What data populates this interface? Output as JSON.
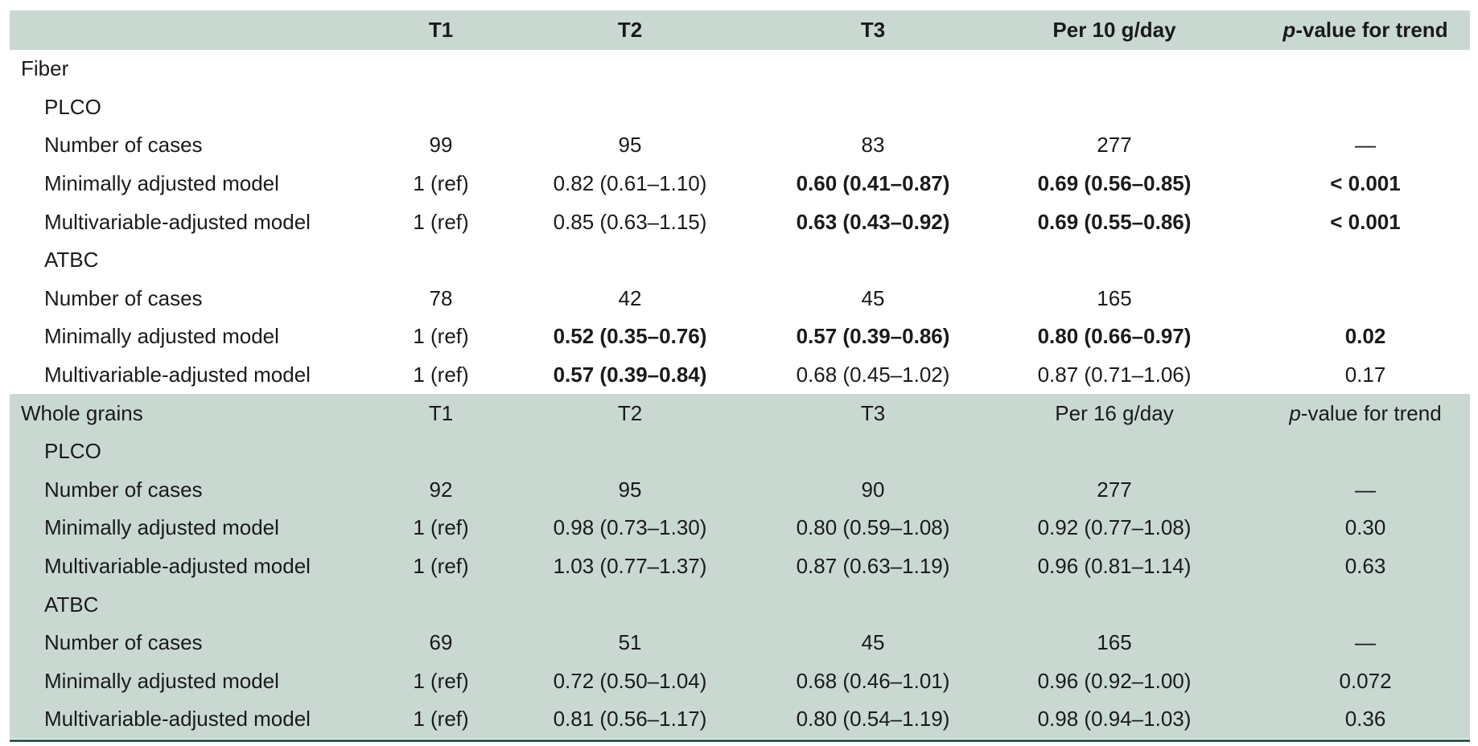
{
  "header": [
    "",
    "T1",
    "T2",
    "T3",
    "Per 10 g/day",
    "p-value for trend"
  ],
  "rows": [
    {
      "cells": [
        "Fiber",
        "",
        "",
        "",
        "",
        ""
      ],
      "indent": 0,
      "bold": [],
      "shaded": false
    },
    {
      "cells": [
        "PLCO",
        "",
        "",
        "",
        "",
        ""
      ],
      "indent": 1,
      "bold": [],
      "shaded": false
    },
    {
      "cells": [
        "Number of cases",
        "99",
        "95",
        "83",
        "277",
        "—"
      ],
      "indent": 1,
      "bold": [],
      "shaded": false
    },
    {
      "cells": [
        "Minimally adjusted model",
        "1 (ref)",
        "0.82 (0.61–1.10)",
        "0.60 (0.41–0.87)",
        "0.69 (0.56–0.85)",
        "< 0.001"
      ],
      "indent": 1,
      "bold": [
        3,
        4,
        5
      ],
      "shaded": false
    },
    {
      "cells": [
        "Multivariable-adjusted model",
        "1 (ref)",
        "0.85 (0.63–1.15)",
        "0.63 (0.43–0.92)",
        "0.69 (0.55–0.86)",
        "< 0.001"
      ],
      "indent": 1,
      "bold": [
        3,
        4,
        5
      ],
      "shaded": false
    },
    {
      "cells": [
        "ATBC",
        "",
        "",
        "",
        "",
        ""
      ],
      "indent": 1,
      "bold": [],
      "shaded": false
    },
    {
      "cells": [
        "Number of cases",
        "78",
        "42",
        "45",
        "165",
        ""
      ],
      "indent": 1,
      "bold": [],
      "shaded": false
    },
    {
      "cells": [
        "Minimally adjusted model",
        "1 (ref)",
        "0.52 (0.35–0.76)",
        "0.57 (0.39–0.86)",
        "0.80 (0.66–0.97)",
        "0.02"
      ],
      "indent": 1,
      "bold": [
        2,
        3,
        4,
        5
      ],
      "shaded": false
    },
    {
      "cells": [
        "Multivariable-adjusted model",
        "1 (ref)",
        "0.57 (0.39–0.84)",
        "0.68 (0.45–1.02)",
        "0.87 (0.71–1.06)",
        "0.17"
      ],
      "indent": 1,
      "bold": [
        2
      ],
      "shaded": false
    },
    {
      "cells": [
        "Whole grains",
        "T1",
        "T2",
        "T3",
        "Per 16 g/day",
        "p-value for trend"
      ],
      "indent": 0,
      "bold": [],
      "shaded": true
    },
    {
      "cells": [
        "PLCO",
        "",
        "",
        "",
        "",
        ""
      ],
      "indent": 1,
      "bold": [],
      "shaded": true
    },
    {
      "cells": [
        "Number of cases",
        "92",
        "95",
        "90",
        "277",
        "—"
      ],
      "indent": 1,
      "bold": [],
      "shaded": true
    },
    {
      "cells": [
        "Minimally adjusted model",
        "1 (ref)",
        "0.98 (0.73–1.30)",
        "0.80 (0.59–1.08)",
        "0.92 (0.77–1.08)",
        "0.30"
      ],
      "indent": 1,
      "bold": [],
      "shaded": true
    },
    {
      "cells": [
        "Multivariable-adjusted model",
        "1 (ref)",
        "1.03 (0.77–1.37)",
        "0.87 (0.63–1.19)",
        "0.96 (0.81–1.14)",
        "0.63"
      ],
      "indent": 1,
      "bold": [],
      "shaded": true
    },
    {
      "cells": [
        "ATBC",
        "",
        "",
        "",
        "",
        ""
      ],
      "indent": 1,
      "bold": [],
      "shaded": true
    },
    {
      "cells": [
        "Number of cases",
        "69",
        "51",
        "45",
        "165",
        "—"
      ],
      "indent": 1,
      "bold": [],
      "shaded": true
    },
    {
      "cells": [
        "Minimally adjusted model",
        "1 (ref)",
        "0.72 (0.50–1.04)",
        "0.68 (0.46–1.01)",
        "0.96 (0.92–1.00)",
        "0.072"
      ],
      "indent": 1,
      "bold": [],
      "shaded": true
    },
    {
      "cells": [
        "Multivariable-adjusted model",
        "1 (ref)",
        "0.81 (0.56–1.17)",
        "0.80 (0.54–1.19)",
        "0.98 (0.94–1.03)",
        "0.36"
      ],
      "indent": 1,
      "bold": [],
      "shaded": true
    }
  ],
  "colors": {
    "shade": "#c9d9d2",
    "rule": "#2e5e4e",
    "text": "#1a1a1a"
  }
}
